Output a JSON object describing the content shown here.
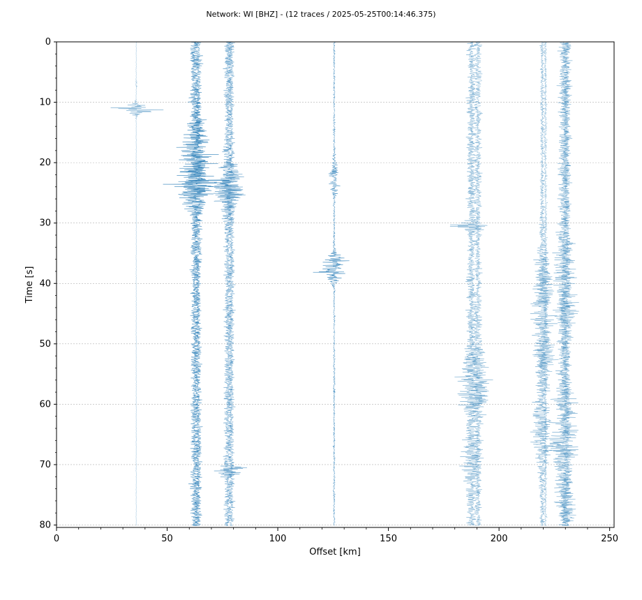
{
  "chart_data": {
    "type": "line",
    "title": "Network: WI [BHZ] - (12 traces / 2025-05-25T00:14:46.375)",
    "xlabel": "Offset [km]",
    "ylabel": "Time [s]",
    "xlim": [
      0,
      252
    ],
    "ylim": [
      0,
      80.4
    ],
    "y_inverted": true,
    "xticks": [
      "0",
      "50",
      "100",
      "150",
      "200",
      "250"
    ],
    "yticks": [
      "0",
      "10",
      "20",
      "30",
      "40",
      "50",
      "60",
      "70",
      "80"
    ],
    "grid": "horizontal",
    "trace_color": "#1f77b4",
    "traces": [
      {
        "offset": 36.0,
        "base_amp": 0.15,
        "events": [
          {
            "t": 7.0,
            "a": 0.6,
            "w": 0.6
          },
          {
            "t": 11.2,
            "a": 13.0,
            "w": 0.8
          }
        ],
        "opacity": 0.5
      },
      {
        "offset": 62.5,
        "base_amp": 2.5,
        "events": [
          {
            "t": 22.5,
            "a": 12.0,
            "w": 4.5
          },
          {
            "t": 15.0,
            "a": 4.0,
            "w": 4.0
          }
        ],
        "opacity": 0.75
      },
      {
        "offset": 64.0,
        "base_amp": 2.0,
        "events": [
          {
            "t": 23.0,
            "a": 6.0,
            "w": 4.5
          }
        ],
        "opacity": 0.7
      },
      {
        "offset": 77.5,
        "base_amp": 2.3,
        "events": [
          {
            "t": 24.5,
            "a": 8.0,
            "w": 3.5
          },
          {
            "t": 71.0,
            "a": 10.0,
            "w": 0.8
          }
        ],
        "opacity": 0.6
      },
      {
        "offset": 79.0,
        "base_amp": 1.8,
        "events": [
          {
            "t": 24.0,
            "a": 5.0,
            "w": 3.0
          }
        ],
        "opacity": 0.55
      },
      {
        "offset": 125.5,
        "base_amp": 0.6,
        "events": [
          {
            "t": 22.5,
            "a": 2.5,
            "w": 2.5
          },
          {
            "t": 37.5,
            "a": 10.0,
            "w": 1.8
          }
        ],
        "opacity": 0.75
      },
      {
        "offset": 187.5,
        "base_amp": 2.6,
        "events": [
          {
            "t": 30.5,
            "a": 10.0,
            "w": 0.6
          },
          {
            "t": 57.0,
            "a": 6.0,
            "w": 5.0
          },
          {
            "t": 70.0,
            "a": 4.0,
            "w": 4.0
          }
        ],
        "opacity": 0.5
      },
      {
        "offset": 190.5,
        "base_amp": 2.2,
        "events": [
          {
            "t": 56.0,
            "a": 5.0,
            "w": 5.0
          }
        ],
        "opacity": 0.45
      },
      {
        "offset": 219.5,
        "base_amp": 1.2,
        "events": [
          {
            "t": 45.0,
            "a": 5.0,
            "w": 10.0
          },
          {
            "t": 65.0,
            "a": 6.0,
            "w": 6.0
          }
        ],
        "opacity": 0.5
      },
      {
        "offset": 221.0,
        "base_amp": 1.0,
        "events": [
          {
            "t": 52.0,
            "a": 6.0,
            "w": 3.0
          },
          {
            "t": 40.0,
            "a": 4.0,
            "w": 3.0
          }
        ],
        "opacity": 0.4
      },
      {
        "offset": 229.5,
        "base_amp": 3.5,
        "events": [
          {
            "t": 37.0,
            "a": 4.0,
            "w": 4.0
          },
          {
            "t": 65.0,
            "a": 5.0,
            "w": 8.0
          }
        ],
        "opacity": 0.5
      },
      {
        "offset": 230.5,
        "base_amp": 2.5,
        "events": [
          {
            "t": 44.0,
            "a": 5.0,
            "w": 4.0
          },
          {
            "t": 76.5,
            "a": 4.0,
            "w": 2.0
          }
        ],
        "opacity": 0.45
      }
    ]
  }
}
